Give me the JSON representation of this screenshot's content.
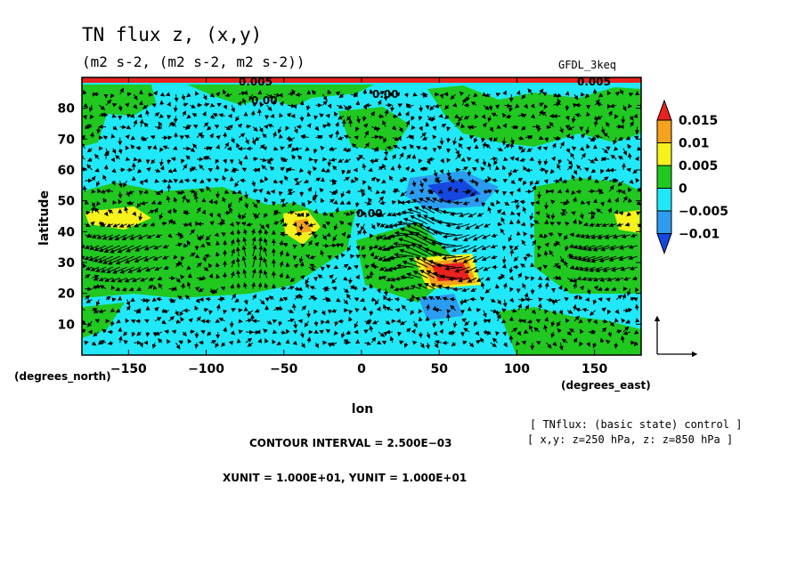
{
  "chart_data": {
    "type": "heatmap",
    "title": "TN flux z, (x,y)",
    "subtitle": "(m2 s-2, (m2 s-2, m2 s-2))",
    "model_label": "GFDL_3keq",
    "xlabel": "lon",
    "ylabel": "latitude",
    "x_unit_label": "(degrees_east)",
    "y_unit_label": "(degrees_north)",
    "xlim": [
      -180,
      180
    ],
    "ylim": [
      0,
      90
    ],
    "x_ticks": [
      -150,
      -100,
      -50,
      0,
      50,
      100,
      150
    ],
    "x_tick_labels": [
      "−150",
      "−100",
      "−50",
      "0",
      "50",
      "100",
      "150"
    ],
    "y_ticks": [
      10,
      20,
      30,
      40,
      50,
      60,
      70,
      80
    ],
    "y_tick_labels": [
      "10",
      "20",
      "30",
      "40",
      "50",
      "60",
      "70",
      "80"
    ],
    "colorbar": {
      "levels": [
        "0.015",
        "0.01",
        "0.005",
        "0",
        "−0.005",
        "−0.01"
      ],
      "colors": [
        "#e8221e",
        "#f5a21c",
        "#f8f21c",
        "#20c820",
        "#20e8f8",
        "#2c9cf0",
        "#1448e0"
      ]
    },
    "contour_interval": "CONTOUR INTERVAL = 2.500E−03",
    "units_note": "XUNIT = 1.000E+01, YUNIT = 1.000E+01",
    "info_line1": "[ TNflux: (basic state) control ]",
    "info_line2": "[ x,y: z=250 hPa, z: z=850 hPa ]",
    "contour_labels": [
      "0.00",
      "0.00",
      "0.00",
      "0.005",
      "0.005"
    ],
    "field_regions": [
      {
        "level": "positive-0.015",
        "lon": 58,
        "lat": 27,
        "rx": 15,
        "ry": 8
      },
      {
        "level": "negative-0.01",
        "lon": 45,
        "lat": 50,
        "rx": 22,
        "ry": 7
      },
      {
        "level": "negative-0.005",
        "lon": 50,
        "lat": 12,
        "rx": 12,
        "ry": 5
      },
      {
        "level": "positive-0.005",
        "lon": -160,
        "lat": 43,
        "rx": 18,
        "ry": 4
      },
      {
        "level": "positive-0.005",
        "lon": -40,
        "lat": 40,
        "rx": 6,
        "ry": 6
      }
    ]
  }
}
